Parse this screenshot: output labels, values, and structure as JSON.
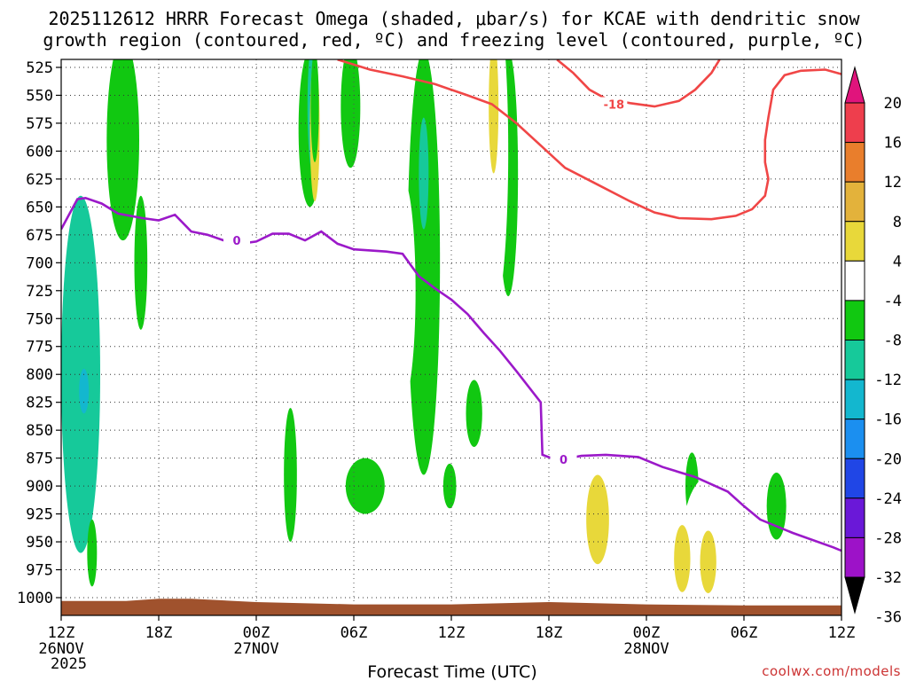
{
  "chart_data": {
    "type": "heatmap",
    "title_line1": "2025112612 HRRR Forecast Omega (shaded, μbar/s) for KCAE with dendritic snow",
    "title_line2": "growth region (contoured, red, ºC) and freezing level (contoured, purple, ºC)",
    "xlabel": "Forecast Time (UTC)",
    "credit": "coolwx.com/models",
    "x_range_hours": [
      0,
      48
    ],
    "y_range_mb": [
      1010,
      518
    ],
    "y_ticks": [
      525,
      550,
      575,
      600,
      625,
      650,
      675,
      700,
      725,
      750,
      775,
      800,
      825,
      850,
      875,
      900,
      925,
      950,
      975,
      1000
    ],
    "x_ticks": [
      {
        "h": 0,
        "label": "12Z",
        "date": "26NOV",
        "year": "2025"
      },
      {
        "h": 6,
        "label": "18Z",
        "date": "",
        "year": ""
      },
      {
        "h": 12,
        "label": "00Z",
        "date": "27NOV",
        "year": ""
      },
      {
        "h": 18,
        "label": "06Z",
        "date": "",
        "year": ""
      },
      {
        "h": 24,
        "label": "12Z",
        "date": "",
        "year": ""
      },
      {
        "h": 30,
        "label": "18Z",
        "date": "",
        "year": ""
      },
      {
        "h": 36,
        "label": "00Z",
        "date": "28NOV",
        "year": ""
      },
      {
        "h": 42,
        "label": "06Z",
        "date": "",
        "year": ""
      },
      {
        "h": 48,
        "label": "12Z",
        "date": "",
        "year": ""
      }
    ],
    "colorbar": [
      {
        "label": "20",
        "color": "#ee3e4d"
      },
      {
        "label": "16",
        "color": "#e97e2c"
      },
      {
        "label": "12",
        "color": "#e3b23b"
      },
      {
        "label": "8",
        "color": "#e8d83a"
      },
      {
        "label": "4",
        "color": "#ffffff"
      },
      {
        "label": "-4",
        "color": "#11c811"
      },
      {
        "label": "-8",
        "color": "#16c99a"
      },
      {
        "label": "-12",
        "color": "#13b7cf"
      },
      {
        "label": "-16",
        "color": "#1b8ff0"
      },
      {
        "label": "-20",
        "color": "#2046e6"
      },
      {
        "label": "-24",
        "color": "#6a18d8"
      },
      {
        "label": "-28",
        "color": "#9d12c8"
      },
      {
        "label": "-32",
        "color": "#a9a9a9"
      },
      {
        "label": "-36",
        "color": ""
      }
    ],
    "colorbar_top_arrow_color": "#e0147c",
    "colorbar_bottom_arrow_color": "#000000",
    "ground_color": "#a0522d",
    "omega_regions": [
      {
        "level": "-8",
        "c": [
          1.2,
          800
        ],
        "r": [
          1.2,
          160
        ]
      },
      {
        "level": "-4",
        "c": [
          3.8,
          590
        ],
        "r": [
          1.0,
          90
        ]
      },
      {
        "level": "-4",
        "c": [
          4.9,
          700
        ],
        "r": [
          0.4,
          60
        ]
      },
      {
        "level": "-4",
        "c": [
          12.9,
          620
        ],
        "r": [
          0.3,
          55
        ]
      },
      {
        "level": "-4",
        "c": [
          15.3,
          580
        ],
        "r": [
          0.7,
          70
        ]
      },
      {
        "level": "-4",
        "c": [
          17.8,
          560
        ],
        "r": [
          0.6,
          55
        ]
      },
      {
        "level": "-4",
        "c": [
          22.3,
          700
        ],
        "r": [
          1.0,
          190
        ]
      },
      {
        "level": "-4",
        "c": [
          27.5,
          620
        ],
        "r": [
          0.6,
          110
        ]
      },
      {
        "level": "-4",
        "c": [
          14.1,
          890
        ],
        "r": [
          0.4,
          60
        ]
      },
      {
        "level": "-4",
        "c": [
          18.7,
          900
        ],
        "r": [
          1.2,
          25
        ]
      },
      {
        "level": "-4",
        "c": [
          25.4,
          835
        ],
        "r": [
          0.5,
          30
        ]
      },
      {
        "level": "-4",
        "c": [
          23.9,
          900
        ],
        "r": [
          0.4,
          20
        ]
      },
      {
        "level": "-4",
        "c": [
          38.8,
          900
        ],
        "r": [
          0.4,
          30
        ]
      },
      {
        "level": "-4",
        "c": [
          44.0,
          918
        ],
        "r": [
          0.6,
          30
        ]
      },
      {
        "level": "-4",
        "c": [
          1.9,
          960
        ],
        "r": [
          0.3,
          30
        ]
      },
      {
        "level": "-8",
        "c": [
          15.5,
          560
        ],
        "r": [
          0.35,
          60
        ]
      },
      {
        "level": "-8",
        "c": [
          22.3,
          620
        ],
        "r": [
          0.3,
          50
        ]
      },
      {
        "level": "4",
        "c": [
          10.5,
          820
        ],
        "r": [
          1.2,
          140
        ]
      },
      {
        "level": "4",
        "c": [
          11.6,
          730
        ],
        "r": [
          0.8,
          80
        ]
      },
      {
        "level": "4",
        "c": [
          7.9,
          920
        ],
        "r": [
          0.9,
          75
        ]
      },
      {
        "level": "4",
        "c": [
          10.5,
          960
        ],
        "r": [
          1.3,
          60
        ]
      },
      {
        "level": "4",
        "c": [
          13.3,
          650
        ],
        "r": [
          0.9,
          150
        ]
      },
      {
        "level": "4",
        "c": [
          15.0,
          740
        ],
        "r": [
          0.4,
          50
        ]
      },
      {
        "level": "4",
        "c": [
          21.0,
          725
        ],
        "r": [
          0.8,
          100
        ]
      },
      {
        "level": "4",
        "c": [
          19.0,
          985
        ],
        "r": [
          3.0,
          25
        ]
      },
      {
        "level": "4",
        "c": [
          26.5,
          600
        ],
        "r": [
          1.0,
          150
        ]
      },
      {
        "level": "4",
        "c": [
          26.0,
          985
        ],
        "r": [
          2.0,
          25
        ]
      },
      {
        "level": "4",
        "c": [
          24.8,
          960
        ],
        "r": [
          0.9,
          40
        ]
      },
      {
        "level": "4",
        "c": [
          28.2,
          965
        ],
        "r": [
          0.8,
          45
        ]
      },
      {
        "level": "4",
        "c": [
          33.2,
          940
        ],
        "r": [
          3.3,
          65
        ]
      },
      {
        "level": "4",
        "c": [
          33.0,
          680
        ],
        "r": [
          0.5,
          40
        ]
      },
      {
        "level": "4",
        "c": [
          37.0,
          965
        ],
        "r": [
          2.8,
          45
        ]
      },
      {
        "level": "4",
        "c": [
          40.0,
          950
        ],
        "r": [
          1.8,
          60
        ]
      },
      {
        "level": "4",
        "c": [
          42.8,
          720
        ],
        "r": [
          1.3,
          100
        ]
      },
      {
        "level": "4",
        "c": [
          42.5,
          975
        ],
        "r": [
          1.0,
          25
        ]
      },
      {
        "level": "4",
        "c": [
          45.7,
          780
        ],
        "r": [
          0.3,
          40
        ]
      },
      {
        "level": "4",
        "c": [
          47.3,
          980
        ],
        "r": [
          1.0,
          30
        ]
      },
      {
        "level": "4",
        "c": [
          47.6,
          620
        ],
        "r": [
          0.5,
          80
        ]
      },
      {
        "level": "4",
        "c": [
          16.0,
          580
        ],
        "r": [
          0.5,
          130
        ]
      },
      {
        "level": "8",
        "c": [
          15.6,
          580
        ],
        "r": [
          0.3,
          65
        ]
      },
      {
        "level": "8",
        "c": [
          33.0,
          930
        ],
        "r": [
          0.7,
          40
        ]
      },
      {
        "level": "8",
        "c": [
          38.2,
          965
        ],
        "r": [
          0.5,
          30
        ]
      },
      {
        "level": "8",
        "c": [
          39.8,
          968
        ],
        "r": [
          0.5,
          28
        ]
      },
      {
        "level": "8",
        "c": [
          26.6,
          560
        ],
        "r": [
          0.3,
          60
        ]
      },
      {
        "level": "-4",
        "c": [
          15.6,
          560
        ],
        "r": [
          0.25,
          50
        ]
      },
      {
        "level": "-8",
        "c": [
          1.5,
          810
        ],
        "r": [
          0.5,
          50
        ]
      },
      {
        "level": "-12",
        "c": [
          1.4,
          815
        ],
        "r": [
          0.3,
          20
        ]
      }
    ],
    "dgz_contour": {
      "label": "-18",
      "label_at": [
        34.0,
        558
      ],
      "segments": [
        [
          [
            17.0,
            518
          ],
          [
            19.0,
            527
          ],
          [
            21.0,
            533
          ],
          [
            23.0,
            540
          ],
          [
            25.0,
            550
          ],
          [
            26.5,
            558
          ],
          [
            28.0,
            575
          ],
          [
            29.5,
            595
          ],
          [
            31.0,
            615
          ],
          [
            33.0,
            630
          ],
          [
            35.0,
            645
          ],
          [
            36.5,
            655
          ],
          [
            38.0,
            660
          ],
          [
            40.0,
            661
          ],
          [
            41.5,
            658
          ],
          [
            42.5,
            652
          ],
          [
            43.3,
            640
          ],
          [
            43.5,
            625
          ],
          [
            43.3,
            610
          ],
          [
            43.3,
            590
          ],
          [
            43.5,
            570
          ],
          [
            43.8,
            545
          ],
          [
            44.5,
            532
          ],
          [
            45.5,
            528
          ],
          [
            47.0,
            527
          ],
          [
            48.0,
            531
          ]
        ],
        [
          [
            30.5,
            518
          ],
          [
            31.5,
            530
          ],
          [
            32.5,
            545
          ],
          [
            33.5,
            553
          ],
          [
            35.0,
            557
          ],
          [
            36.5,
            560
          ],
          [
            38.0,
            555
          ],
          [
            39.0,
            545
          ],
          [
            40.0,
            530
          ],
          [
            40.5,
            518
          ]
        ]
      ]
    },
    "freezing_level": {
      "label": "0",
      "points": [
        [
          0.0,
          670
        ],
        [
          1.0,
          643
        ],
        [
          1.5,
          642
        ],
        [
          2.5,
          647
        ],
        [
          3.5,
          656
        ],
        [
          5.0,
          660
        ],
        [
          6.0,
          662
        ],
        [
          7.0,
          657
        ],
        [
          8.0,
          672
        ],
        [
          9.0,
          675
        ],
        [
          10.0,
          680
        ],
        [
          11.0,
          683
        ],
        [
          12.0,
          681
        ],
        [
          13.0,
          674
        ],
        [
          14.0,
          674
        ],
        [
          15.0,
          680
        ],
        [
          16.0,
          672
        ],
        [
          17.0,
          683
        ],
        [
          18.0,
          688
        ],
        [
          20.0,
          690
        ],
        [
          21.0,
          692
        ],
        [
          22.0,
          712
        ],
        [
          23.0,
          723
        ],
        [
          24.0,
          733
        ],
        [
          25.0,
          746
        ],
        [
          26.0,
          763
        ],
        [
          27.0,
          779
        ],
        [
          28.0,
          797
        ],
        [
          29.5,
          825
        ],
        [
          29.6,
          872
        ],
        [
          30.5,
          877
        ],
        [
          32.0,
          873
        ],
        [
          33.5,
          872
        ],
        [
          35.5,
          874
        ],
        [
          37.0,
          883
        ],
        [
          39.0,
          892
        ],
        [
          41.0,
          905
        ],
        [
          42.0,
          918
        ],
        [
          43.0,
          930
        ],
        [
          45.0,
          942
        ],
        [
          47.5,
          955
        ],
        [
          48.0,
          958
        ]
      ],
      "labels_at": [
        [
          10.8,
          680
        ],
        [
          30.9,
          876
        ]
      ]
    },
    "ground": [
      [
        0,
        1003
      ],
      [
        4,
        1003
      ],
      [
        6,
        1001
      ],
      [
        8,
        1001
      ],
      [
        12,
        1004
      ],
      [
        18,
        1006
      ],
      [
        24,
        1006
      ],
      [
        30,
        1004
      ],
      [
        36,
        1006
      ],
      [
        42,
        1007
      ],
      [
        48,
        1007
      ]
    ]
  }
}
